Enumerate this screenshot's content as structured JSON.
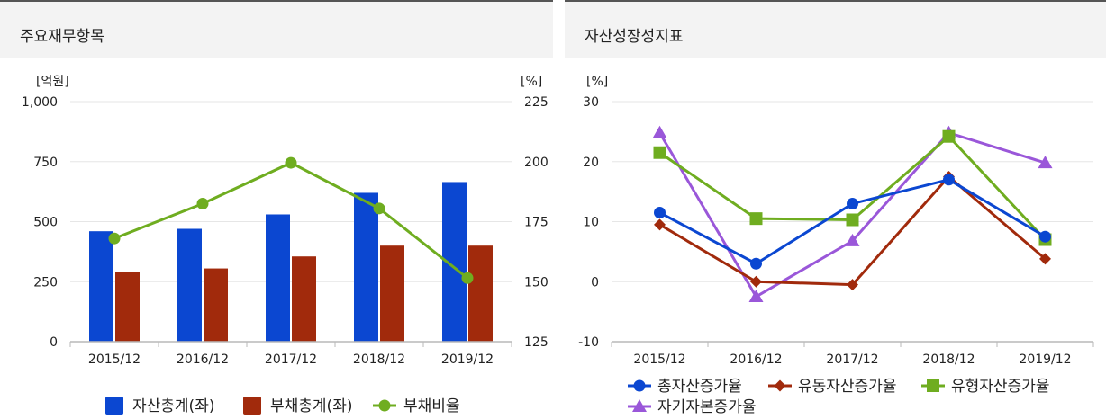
{
  "panels": {
    "left": {
      "title": "주요재무항목"
    },
    "right": {
      "title": "자산성장성지표"
    }
  },
  "chart_data": [
    {
      "type": "bar",
      "title": "주요재무항목",
      "categories": [
        "2015/12",
        "2016/12",
        "2017/12",
        "2018/12",
        "2019/12"
      ],
      "y_left_unit": "[억원]",
      "y_right_unit": "[%]",
      "ylim_left": [
        0,
        1000
      ],
      "ylim_right": [
        125,
        225
      ],
      "yticks_left": [
        "0",
        "250",
        "500",
        "750",
        "1,000"
      ],
      "yticks_right": [
        "125",
        "150",
        "175",
        "200",
        "225"
      ],
      "series": [
        {
          "name": "자산총계(좌)",
          "kind": "bar",
          "axis": "left",
          "color": "#0b47d1",
          "values": [
            460,
            470,
            530,
            620,
            665
          ]
        },
        {
          "name": "부채총계(좌)",
          "kind": "bar",
          "axis": "left",
          "color": "#a12a0c",
          "values": [
            290,
            305,
            355,
            400,
            400
          ]
        },
        {
          "name": "부채비율",
          "kind": "line",
          "axis": "right",
          "color": "#6fad20",
          "values": [
            168,
            182.5,
            199.5,
            180.5,
            151.5
          ]
        }
      ]
    },
    {
      "type": "line",
      "title": "자산성장성지표",
      "categories": [
        "2015/12",
        "2016/12",
        "2017/12",
        "2018/12",
        "2019/12"
      ],
      "y_unit": "[%]",
      "ylim": [
        -10,
        30
      ],
      "yticks": [
        "-10",
        "0",
        "10",
        "20",
        "30"
      ],
      "series": [
        {
          "name": "총자산증가율",
          "marker": "circle",
          "color": "#0b47d1",
          "values": [
            11.5,
            3,
            13,
            17,
            7.5
          ]
        },
        {
          "name": "유동자산증가율",
          "marker": "diamond",
          "color": "#a12a0c",
          "values": [
            9.5,
            0,
            -0.5,
            17.5,
            3.8
          ]
        },
        {
          "name": "유형자산증가율",
          "marker": "square",
          "color": "#6fad20",
          "values": [
            21.5,
            10.5,
            10.3,
            24.2,
            7
          ]
        },
        {
          "name": "자기자본증가율",
          "marker": "triangle",
          "color": "#9a57d9",
          "values": [
            24.8,
            -2.5,
            6.8,
            24.8,
            19.8
          ]
        }
      ]
    }
  ]
}
